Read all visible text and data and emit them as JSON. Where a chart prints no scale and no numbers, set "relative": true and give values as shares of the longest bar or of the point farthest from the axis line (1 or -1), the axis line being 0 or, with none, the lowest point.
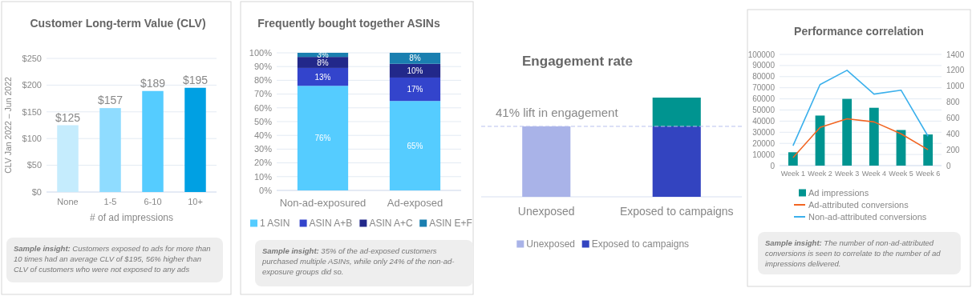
{
  "chart_data": [
    {
      "type": "bar",
      "title": "Customer Long-term Value (CLV)",
      "xlabel": "# of ad impressions",
      "ylabel": "CLV Jan 2022 – Jun 2022",
      "categories": [
        "None",
        "1-5",
        "6-10",
        "10+"
      ],
      "values": [
        125,
        157,
        189,
        195
      ],
      "colors": [
        "#c5ecfd",
        "#8fdcff",
        "#55ccff",
        "#00a0e3"
      ],
      "value_labels": [
        "$125",
        "$157",
        "$189",
        "$195"
      ],
      "ylim": [
        0,
        250
      ],
      "yticks": [
        {
          "value": 0,
          "label": "$0"
        },
        {
          "value": 50,
          "label": "$50"
        },
        {
          "value": 100,
          "label": "$100"
        },
        {
          "value": 150,
          "label": "$150"
        },
        {
          "value": 200,
          "label": "$200"
        },
        {
          "value": 250,
          "label": "$250"
        }
      ],
      "grid": "y",
      "annotations": [
        "Sample insight: Customers exposed to ads for more than 10 times had an average CLV of $195, 56% higher than CLV of customers who were not exposed to any ads"
      ]
    },
    {
      "type": "bar",
      "title": "Frequently bought together ASINs",
      "stacked": true,
      "categories": [
        "Non-ad-exposured",
        "Ad-exposed"
      ],
      "series": [
        {
          "name": "1 ASIN",
          "color": "#55ccff",
          "values": [
            76,
            65
          ],
          "value_labels": [
            "76%",
            "65%"
          ]
        },
        {
          "name": "ASIN A+B",
          "color": "#3344cc",
          "values": [
            13,
            17
          ],
          "value_labels": [
            "13%",
            "17%"
          ]
        },
        {
          "name": "ASIN A+C",
          "color": "#22288a",
          "values": [
            8,
            10
          ],
          "value_labels": [
            "8%",
            "10%"
          ]
        },
        {
          "name": "ASIN E+F",
          "color": "#1a7fb0",
          "values": [
            3,
            8
          ],
          "value_labels": [
            "3%",
            "8%"
          ]
        }
      ],
      "ylim": [
        0,
        100
      ],
      "yticks": [
        {
          "value": 0,
          "label": "0%"
        },
        {
          "value": 10,
          "label": "10%"
        },
        {
          "value": 20,
          "label": "20%"
        },
        {
          "value": 30,
          "label": "30%"
        },
        {
          "value": 40,
          "label": "40%"
        },
        {
          "value": 50,
          "label": "50%"
        },
        {
          "value": 60,
          "label": "60%"
        },
        {
          "value": 70,
          "label": "70%"
        },
        {
          "value": 80,
          "label": "80%"
        },
        {
          "value": 90,
          "label": "90%"
        },
        {
          "value": 100,
          "label": "100%"
        }
      ],
      "grid": "y",
      "legend": "bottom",
      "annotations": [
        "Sample insight: 35% of the ad-exposed customers purchased multiple ASINs, while only 24% of the non-ad-exposure groups did so."
      ]
    },
    {
      "type": "bar",
      "title": "Engagement rate",
      "relative": true,
      "stacked": true,
      "categories": [
        "Unexposed",
        "Exposed to campaigns"
      ],
      "series": [
        {
          "name": "Unexposed",
          "color": "#a9b3e8",
          "values": [
            0.71,
            null
          ]
        },
        {
          "name": "Exposed to campaigns",
          "color": "#3344c0",
          "values": [
            null,
            0.71
          ]
        },
        {
          "color": "#009490",
          "values": [
            null,
            0.29
          ]
        }
      ],
      "ref_lines": [
        {
          "axis": "y",
          "value": 0.71,
          "label": "41% lift in engagement",
          "color": "#b8c0ee",
          "line_style": "dashed"
        }
      ],
      "legend": "bottom"
    },
    {
      "type": "bar",
      "title": "Performance correlation",
      "categories": [
        "Week 1",
        "Week 2",
        "Week 3",
        "Week 4",
        "Week 5",
        "Week 6"
      ],
      "series": [
        {
          "name": "Ad impressions",
          "color": "#009490",
          "values": [
            12000,
            45000,
            60000,
            52000,
            32000,
            28000
          ]
        },
        {
          "name": "Ad-attributed conversions",
          "type": "line",
          "axis": "y2",
          "color": "#f26522",
          "values": [
            100,
            480,
            590,
            550,
            400,
            200
          ]
        },
        {
          "name": "Non-ad-attributed conversions",
          "type": "line",
          "axis": "y2",
          "color": "#3bb0ec",
          "values": [
            250,
            1020,
            1200,
            900,
            950,
            370
          ]
        }
      ],
      "ylim": [
        0,
        100000
      ],
      "yticks": [
        0,
        10000,
        20000,
        30000,
        40000,
        50000,
        60000,
        70000,
        80000,
        90000,
        100000
      ],
      "y2lim": [
        0,
        1400
      ],
      "y2ticks": [
        0,
        200,
        400,
        600,
        800,
        1000,
        1200,
        1400
      ],
      "grid": "y",
      "legend": "bottom",
      "annotations": [
        "Sample insight: The number of non-ad-attributed conversions is seen to correlate to the number of ad impressions delivered."
      ]
    }
  ]
}
